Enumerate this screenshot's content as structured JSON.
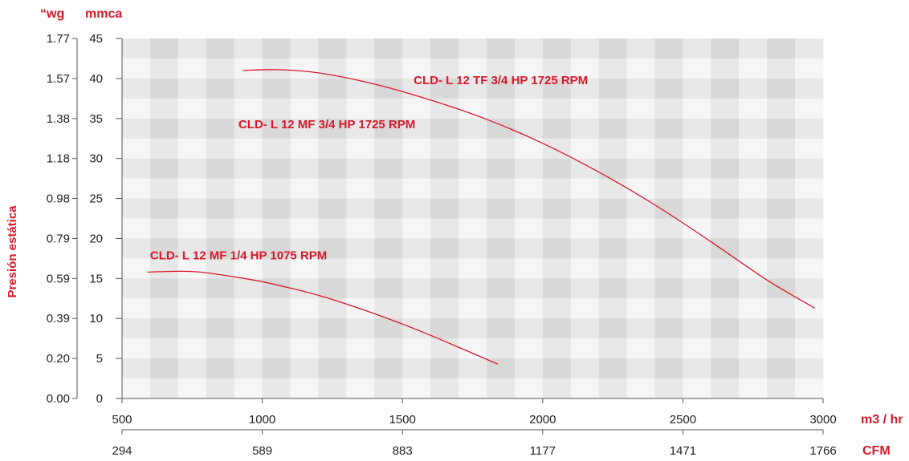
{
  "chart_data": {
    "type": "line",
    "title": "",
    "ylabel": "Presión estática",
    "y_units_left": "“wg",
    "y_units_right": "mmca",
    "xlabel_primary": "m3 / hr",
    "xlabel_secondary": "CFM",
    "xlim": [
      500,
      3000
    ],
    "ylim": [
      0,
      45
    ],
    "grid": true,
    "x_ticks_primary": [
      500,
      1000,
      1500,
      2000,
      2500,
      3000
    ],
    "x_ticks_secondary_labels": [
      "294",
      "589",
      "883",
      "1177",
      "1471",
      "1766"
    ],
    "y_ticks_mmca": [
      0,
      5,
      10,
      15,
      20,
      25,
      30,
      35,
      40,
      45
    ],
    "y_ticks_wg_labels": [
      "0.00",
      "0.20",
      "0.39",
      "0.59",
      "0.79",
      "0.98",
      "1.18",
      "1.38",
      "1.57",
      "1.77"
    ],
    "series": [
      {
        "name": "CLD- L 12 TF 3/4 HP 1725 RPM",
        "x": [
          930,
          1050,
          1200,
          1400,
          1600,
          1800,
          2000,
          2200,
          2400,
          2600,
          2800,
          2970
        ],
        "y": [
          41,
          41.1,
          40.7,
          39.3,
          37.3,
          34.9,
          31.9,
          28.3,
          24.2,
          19.6,
          14.8,
          11.3
        ]
      },
      {
        "name": "CLD- L 12 MF 1/4 HP 1075 RPM",
        "x": [
          590,
          700,
          780,
          900,
          1000,
          1100,
          1200,
          1300,
          1400,
          1500,
          1600,
          1700,
          1840
        ],
        "y": [
          15.8,
          15.9,
          15.8,
          15.2,
          14.6,
          13.8,
          12.9,
          11.8,
          10.6,
          9.3,
          7.9,
          6.4,
          4.3
        ]
      }
    ],
    "annotations": [
      {
        "text": "CLD- L 12 TF 3/4 HP 1725 RPM",
        "x": 1540,
        "y": 39.3
      },
      {
        "text": "CLD- L 12 MF 3/4 HP 1725 RPM",
        "x": 915,
        "y": 33.8
      },
      {
        "text": "CLD- L 12 MF 1/4 HP 1075 RPM",
        "x": 600,
        "y": 17.4
      }
    ],
    "colors": {
      "curve": "#d7192a",
      "label": "#d7192a",
      "axis": "#555555"
    }
  }
}
